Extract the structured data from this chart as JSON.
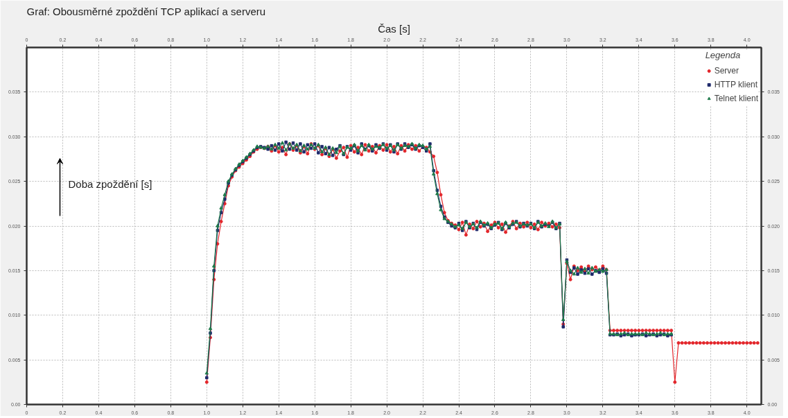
{
  "chart_data": {
    "type": "line",
    "title": "Graf: Obousměrné zpoždění TCP aplikací a serveru",
    "xlabel": "Čas [s]",
    "ylabel": "Doba zpoždění [s]",
    "legend_title": "Legenda",
    "legend": "top right",
    "grid": true,
    "line_style": "solid",
    "xlim": [
      0,
      4.08
    ],
    "xticks": [
      0,
      0.2,
      0.4,
      0.6,
      0.8,
      {
        "value": 1,
        "label": "1.0"
      },
      1.2,
      1.4,
      1.6,
      1.8,
      {
        "value": 2,
        "label": "2.0"
      },
      2.2,
      2.4,
      2.6,
      2.8,
      {
        "value": 3,
        "label": "3.0"
      },
      3.2,
      3.4,
      3.6,
      3.8,
      {
        "value": 4,
        "label": "4.0"
      }
    ],
    "x2lim": [
      0,
      4.08
    ],
    "x2ticks": [
      0,
      0.2,
      0.4,
      0.6,
      0.8,
      {
        "value": 1,
        "label": "1.0"
      },
      1.2,
      1.4,
      1.6,
      1.8,
      {
        "value": 2,
        "label": "2.0"
      },
      2.2,
      2.4,
      2.6,
      2.8,
      {
        "value": 3,
        "label": "3.0"
      },
      3.2,
      3.4,
      3.6,
      3.8,
      {
        "value": 4,
        "label": "4.0"
      }
    ],
    "ylim": [
      0,
      0.04
    ],
    "yticks": [
      {
        "value": 0,
        "label": "0.00"
      },
      0.005,
      {
        "value": 0.01,
        "label": "0.010"
      },
      0.015,
      {
        "value": 0.02,
        "label": "0.020"
      },
      0.025,
      {
        "value": 0.03,
        "label": "0.030"
      },
      0.035
    ],
    "y2lim": [
      0,
      0.04
    ],
    "y2ticks": [
      {
        "value": 0,
        "label": "0.00"
      },
      0.005,
      {
        "value": 0.01,
        "label": "0.010"
      },
      0.015,
      {
        "value": 0.02,
        "label": "0.020"
      },
      0.025,
      {
        "value": 0.03,
        "label": "0.030"
      },
      0.035
    ],
    "series": [
      {
        "name": "Server",
        "color": "#e3262b",
        "marker": "circle",
        "x": [
          1.0,
          1.02,
          1.04,
          1.06,
          1.08,
          1.1,
          1.12,
          1.14,
          1.16,
          1.18,
          1.2,
          1.22,
          1.24,
          1.26,
          1.28,
          1.3,
          1.32,
          1.34,
          1.36,
          1.38,
          1.4,
          1.42,
          1.44,
          1.46,
          1.48,
          1.5,
          1.52,
          1.54,
          1.56,
          1.58,
          1.6,
          1.62,
          1.64,
          1.66,
          1.68,
          1.7,
          1.72,
          1.74,
          1.76,
          1.78,
          1.8,
          1.82,
          1.84,
          1.86,
          1.88,
          1.9,
          1.92,
          1.94,
          1.96,
          1.98,
          2.0,
          2.02,
          2.04,
          2.06,
          2.08,
          2.1,
          2.12,
          2.14,
          2.16,
          2.18,
          2.2,
          2.22,
          2.24,
          2.26,
          2.28,
          2.3,
          2.32,
          2.34,
          2.36,
          2.38,
          2.4,
          2.42,
          2.44,
          2.46,
          2.48,
          2.5,
          2.52,
          2.54,
          2.56,
          2.58,
          2.6,
          2.62,
          2.64,
          2.66,
          2.68,
          2.7,
          2.72,
          2.74,
          2.76,
          2.78,
          2.8,
          2.82,
          2.84,
          2.86,
          2.88,
          2.9,
          2.92,
          2.94,
          2.96,
          2.98,
          3.0,
          3.02,
          3.04,
          3.06,
          3.08,
          3.1,
          3.12,
          3.14,
          3.16,
          3.18,
          3.2,
          3.22,
          3.24,
          3.26,
          3.28,
          3.3,
          3.32,
          3.34,
          3.36,
          3.38,
          3.4,
          3.42,
          3.44,
          3.46,
          3.48,
          3.5,
          3.52,
          3.54,
          3.56,
          3.58,
          3.6,
          3.62,
          3.64,
          3.66,
          3.68,
          3.7,
          3.72,
          3.74,
          3.76,
          3.78,
          3.8,
          3.82,
          3.84,
          3.86,
          3.88,
          3.9,
          3.92,
          3.94,
          3.96,
          3.98,
          4.0,
          4.02,
          4.04,
          4.06
        ],
        "values": [
          0.0025,
          0.0075,
          0.014,
          0.018,
          0.0205,
          0.0225,
          0.0245,
          0.0255,
          0.0262,
          0.0266,
          0.027,
          0.0274,
          0.0278,
          0.0283,
          0.0286,
          0.0288,
          0.0287,
          0.0289,
          0.0284,
          0.029,
          0.0283,
          0.0288,
          0.028,
          0.0292,
          0.0285,
          0.029,
          0.0282,
          0.0289,
          0.0281,
          0.0292,
          0.0286,
          0.029,
          0.028,
          0.0287,
          0.0278,
          0.0286,
          0.0276,
          0.0284,
          0.0288,
          0.0277,
          0.029,
          0.0283,
          0.0288,
          0.028,
          0.0291,
          0.0284,
          0.0289,
          0.0282,
          0.029,
          0.0285,
          0.0291,
          0.0283,
          0.0289,
          0.0281,
          0.029,
          0.0284,
          0.0291,
          0.0286,
          0.029,
          0.0284,
          0.0289,
          0.0288,
          0.0283,
          0.0278,
          0.026,
          0.0235,
          0.0215,
          0.0206,
          0.0203,
          0.0201,
          0.0196,
          0.0204,
          0.019,
          0.0202,
          0.0197,
          0.0205,
          0.0199,
          0.0203,
          0.0194,
          0.0201,
          0.0204,
          0.0198,
          0.0202,
          0.0193,
          0.02,
          0.0205,
          0.0197,
          0.0203,
          0.0199,
          0.0204,
          0.0198,
          0.0202,
          0.0196,
          0.0204,
          0.02,
          0.0203,
          0.0199,
          0.0202,
          0.0198,
          0.009,
          0.0158,
          0.014,
          0.0155,
          0.015,
          0.0154,
          0.0149,
          0.0155,
          0.0151,
          0.0154,
          0.015,
          0.0155,
          0.0151,
          0.0083,
          0.0083,
          0.0083,
          0.0083,
          0.0083,
          0.0083,
          0.0083,
          0.0083,
          0.0083,
          0.0083,
          0.0083,
          0.0083,
          0.0083,
          0.0083,
          0.0083,
          0.0083,
          0.0083,
          0.0083,
          0.0025,
          0.0069,
          0.0069,
          0.0069,
          0.0069,
          0.0069,
          0.0069,
          0.0069,
          0.0069,
          0.0069,
          0.0069,
          0.0069,
          0.0069,
          0.0069,
          0.0069,
          0.0069,
          0.0069,
          0.0069,
          0.0069,
          0.0069,
          0.0069,
          0.0069,
          0.0069,
          0.0069
        ]
      },
      {
        "name": "HTTP klient",
        "color": "#1f2a6b",
        "marker": "square",
        "x": [
          1.0,
          1.02,
          1.04,
          1.06,
          1.08,
          1.1,
          1.12,
          1.14,
          1.16,
          1.18,
          1.2,
          1.22,
          1.24,
          1.26,
          1.28,
          1.3,
          1.32,
          1.34,
          1.36,
          1.38,
          1.4,
          1.42,
          1.44,
          1.46,
          1.48,
          1.5,
          1.52,
          1.54,
          1.56,
          1.58,
          1.6,
          1.62,
          1.64,
          1.66,
          1.68,
          1.7,
          1.72,
          1.74,
          1.76,
          1.78,
          1.8,
          1.82,
          1.84,
          1.86,
          1.88,
          1.9,
          1.92,
          1.94,
          1.96,
          1.98,
          2.0,
          2.02,
          2.04,
          2.06,
          2.08,
          2.1,
          2.12,
          2.14,
          2.16,
          2.18,
          2.2,
          2.22,
          2.24,
          2.26,
          2.28,
          2.3,
          2.32,
          2.34,
          2.36,
          2.38,
          2.4,
          2.42,
          2.44,
          2.46,
          2.48,
          2.5,
          2.52,
          2.54,
          2.56,
          2.58,
          2.6,
          2.62,
          2.64,
          2.66,
          2.68,
          2.7,
          2.72,
          2.74,
          2.76,
          2.78,
          2.8,
          2.82,
          2.84,
          2.86,
          2.88,
          2.9,
          2.92,
          2.94,
          2.96,
          2.98,
          3.0,
          3.02,
          3.04,
          3.06,
          3.08,
          3.1,
          3.12,
          3.14,
          3.16,
          3.18,
          3.2,
          3.22,
          3.24,
          3.26,
          3.28,
          3.3,
          3.32,
          3.34,
          3.36,
          3.38,
          3.4,
          3.42,
          3.44,
          3.46,
          3.48,
          3.5,
          3.52,
          3.54,
          3.56,
          3.58
        ],
        "values": [
          0.003,
          0.008,
          0.015,
          0.0195,
          0.0215,
          0.023,
          0.0248,
          0.0257,
          0.0263,
          0.0268,
          0.0272,
          0.0276,
          0.028,
          0.0284,
          0.0288,
          0.0289,
          0.0288,
          0.0286,
          0.029,
          0.0285,
          0.0292,
          0.0284,
          0.0294,
          0.0286,
          0.0293,
          0.0285,
          0.0292,
          0.0283,
          0.0291,
          0.0287,
          0.0292,
          0.0282,
          0.0289,
          0.0281,
          0.0288,
          0.0279,
          0.0286,
          0.029,
          0.028,
          0.0289,
          0.0285,
          0.029,
          0.0282,
          0.0292,
          0.0286,
          0.029,
          0.0284,
          0.0291,
          0.0287,
          0.0292,
          0.0285,
          0.0291,
          0.0283,
          0.0292,
          0.0286,
          0.0292,
          0.0288,
          0.0291,
          0.0286,
          0.029,
          0.0288,
          0.0284,
          0.0292,
          0.0262,
          0.024,
          0.0222,
          0.021,
          0.0204,
          0.02,
          0.0198,
          0.0203,
          0.0195,
          0.0205,
          0.0198,
          0.0203,
          0.0196,
          0.0204,
          0.02,
          0.0202,
          0.0197,
          0.0201,
          0.0204,
          0.0196,
          0.0203,
          0.0198,
          0.0202,
          0.0205,
          0.0199,
          0.0203,
          0.02,
          0.0203,
          0.0197,
          0.0205,
          0.0199,
          0.0202,
          0.02,
          0.0204,
          0.0197,
          0.0203,
          0.0087,
          0.0162,
          0.0148,
          0.0153,
          0.0146,
          0.0151,
          0.0147,
          0.0152,
          0.0146,
          0.015,
          0.0148,
          0.0152,
          0.0147,
          0.0078,
          0.0078,
          0.0079,
          0.0077,
          0.0078,
          0.0079,
          0.0077,
          0.0078,
          0.0078,
          0.0079,
          0.0077,
          0.0078,
          0.0079,
          0.0077,
          0.0078,
          0.0079,
          0.0077,
          0.0078
        ]
      },
      {
        "name": "Telnet klient",
        "color": "#1e7a4a",
        "marker": "triangle",
        "x": [
          1.0,
          1.02,
          1.04,
          1.06,
          1.08,
          1.1,
          1.12,
          1.14,
          1.16,
          1.18,
          1.2,
          1.22,
          1.24,
          1.26,
          1.28,
          1.3,
          1.32,
          1.34,
          1.36,
          1.38,
          1.4,
          1.42,
          1.44,
          1.46,
          1.48,
          1.5,
          1.52,
          1.54,
          1.56,
          1.58,
          1.6,
          1.62,
          1.64,
          1.66,
          1.68,
          1.7,
          1.72,
          1.74,
          1.76,
          1.78,
          1.8,
          1.82,
          1.84,
          1.86,
          1.88,
          1.9,
          1.92,
          1.94,
          1.96,
          1.98,
          2.0,
          2.02,
          2.04,
          2.06,
          2.08,
          2.1,
          2.12,
          2.14,
          2.16,
          2.18,
          2.2,
          2.22,
          2.24,
          2.26,
          2.28,
          2.3,
          2.32,
          2.34,
          2.36,
          2.38,
          2.4,
          2.42,
          2.44,
          2.46,
          2.48,
          2.5,
          2.52,
          2.54,
          2.56,
          2.58,
          2.6,
          2.62,
          2.64,
          2.66,
          2.68,
          2.7,
          2.72,
          2.74,
          2.76,
          2.78,
          2.8,
          2.82,
          2.84,
          2.86,
          2.88,
          2.9,
          2.92,
          2.94,
          2.96,
          2.98,
          3.0,
          3.02,
          3.04,
          3.06,
          3.08,
          3.1,
          3.12,
          3.14,
          3.16,
          3.18,
          3.2,
          3.22,
          3.24,
          3.26,
          3.28,
          3.3,
          3.32,
          3.34,
          3.36,
          3.38,
          3.4,
          3.42,
          3.44,
          3.46,
          3.48,
          3.5,
          3.52,
          3.54,
          3.56,
          3.58
        ],
        "values": [
          0.0035,
          0.0085,
          0.0155,
          0.02,
          0.022,
          0.0235,
          0.025,
          0.0258,
          0.0264,
          0.0269,
          0.0273,
          0.0277,
          0.0281,
          0.0285,
          0.0289,
          0.0288,
          0.0287,
          0.0289,
          0.0286,
          0.0291,
          0.0287,
          0.0293,
          0.0285,
          0.0292,
          0.0287,
          0.0291,
          0.0284,
          0.029,
          0.0286,
          0.0291,
          0.0287,
          0.0291,
          0.0283,
          0.0288,
          0.028,
          0.0287,
          0.0282,
          0.0289,
          0.0281,
          0.0288,
          0.0287,
          0.0291,
          0.0284,
          0.029,
          0.0285,
          0.0291,
          0.0286,
          0.0289,
          0.0288,
          0.0291,
          0.0287,
          0.029,
          0.0285,
          0.0291,
          0.0287,
          0.029,
          0.0289,
          0.0292,
          0.0287,
          0.0291,
          0.029,
          0.0286,
          0.0289,
          0.0258,
          0.0236,
          0.0218,
          0.0208,
          0.0205,
          0.0202,
          0.0199,
          0.0201,
          0.0197,
          0.0204,
          0.0199,
          0.0202,
          0.0198,
          0.0205,
          0.0201,
          0.0203,
          0.0198,
          0.0202,
          0.0203,
          0.0197,
          0.0204,
          0.0199,
          0.0203,
          0.0204,
          0.02,
          0.0202,
          0.0201,
          0.0202,
          0.0198,
          0.0204,
          0.02,
          0.0203,
          0.0199,
          0.0205,
          0.0198,
          0.0202,
          0.0095,
          0.016,
          0.015,
          0.0146,
          0.0153,
          0.0148,
          0.0152,
          0.0147,
          0.0153,
          0.0149,
          0.0151,
          0.0149,
          0.0151,
          0.0079,
          0.0079,
          0.0078,
          0.0079,
          0.008,
          0.0078,
          0.0079,
          0.0079,
          0.0079,
          0.0078,
          0.008,
          0.0079,
          0.0078,
          0.0079,
          0.008,
          0.0078,
          0.0079,
          0.0079
        ]
      }
    ]
  }
}
